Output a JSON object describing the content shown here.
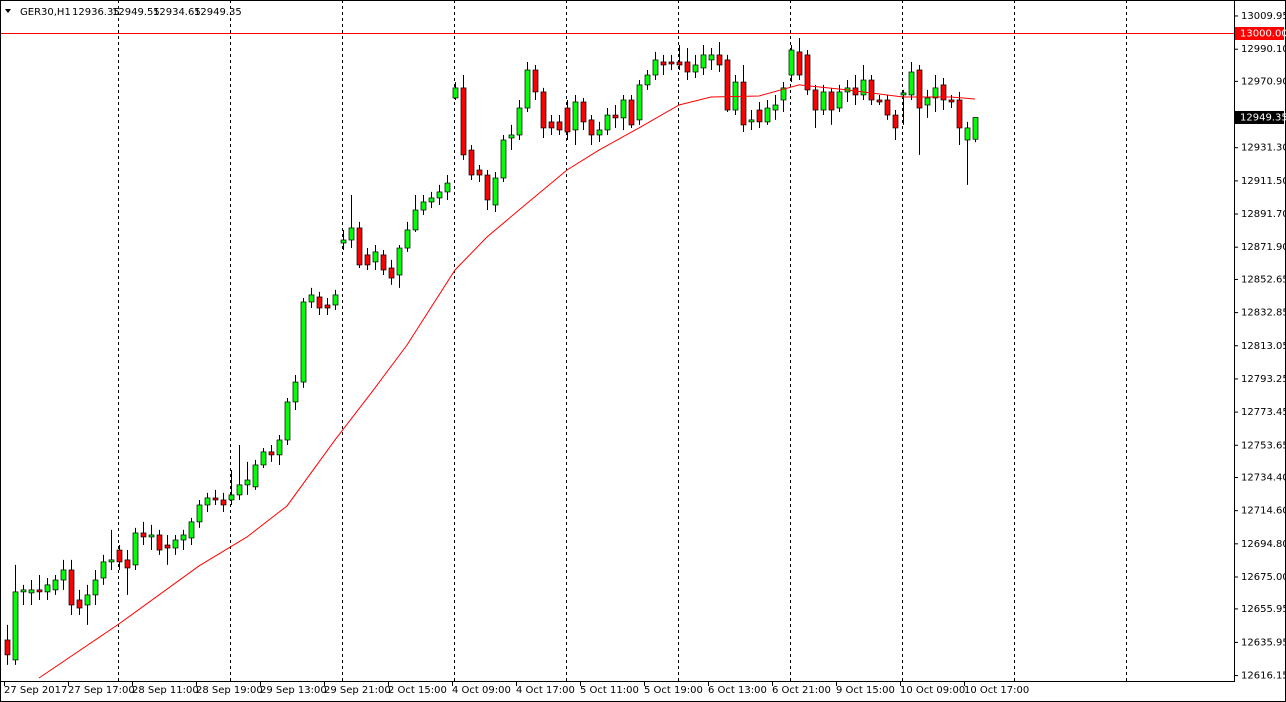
{
  "chart_data": {
    "type": "candlestick",
    "symbol": "GER30,H1",
    "header_ohlc": [
      12936.35,
      12949.55,
      12934.65,
      12949.35
    ],
    "up_color": "#00ff00",
    "down_color": "#ff0000",
    "wick_color": "#000000",
    "grid": true,
    "ylim": [
      12613.5,
      13016.5
    ],
    "yticks": [
      13009.95,
      {
        "value": 12990.1,
        "label": "12990.10"
      },
      {
        "value": 12970.9,
        "label": "12970.90"
      },
      {
        "value": 12931.3,
        "label": "12931.30"
      },
      {
        "value": 12911.5,
        "label": "12911.50"
      },
      {
        "value": 12891.7,
        "label": "12891.70"
      },
      {
        "value": 12871.9,
        "label": "12871.90"
      },
      12852.65,
      12832.85,
      12813.05,
      12793.25,
      12773.45,
      12753.65,
      {
        "value": 12734.4,
        "label": "12734.40"
      },
      {
        "value": 12714.6,
        "label": "12714.60"
      },
      {
        "value": 12694.8,
        "label": "12694.80"
      },
      {
        "value": 12675,
        "label": "12675.00"
      },
      12655.95,
      12635.95,
      12616.15
    ],
    "hline": {
      "value": 13000,
      "label": "13000.00",
      "color": "#ff0000"
    },
    "price_label": 12949.35,
    "categories": [
      "27 Sep 2017",
      null,
      null,
      null,
      null,
      null,
      null,
      null,
      "27 Sep 17:00",
      null,
      null,
      null,
      null,
      null,
      null,
      null,
      "28 Sep 11:00",
      null,
      null,
      null,
      null,
      null,
      null,
      null,
      "28 Sep 19:00",
      null,
      null,
      null,
      null,
      null,
      null,
      null,
      "29 Sep 13:00",
      null,
      null,
      null,
      null,
      null,
      null,
      null,
      "29 Sep 21:00",
      null,
      null,
      null,
      null,
      null,
      null,
      null,
      "2 Oct 15:00",
      null,
      null,
      null,
      null,
      null,
      null,
      null,
      "4 Oct 09:00",
      null,
      null,
      null,
      null,
      null,
      null,
      null,
      "4 Oct 17:00",
      null,
      null,
      null,
      null,
      null,
      null,
      null,
      "5 Oct 11:00",
      null,
      null,
      null,
      null,
      null,
      null,
      null,
      "5 Oct 19:00",
      null,
      null,
      null,
      null,
      null,
      null,
      null,
      "6 Oct 13:00",
      null,
      null,
      null,
      null,
      null,
      null,
      null,
      "6 Oct 21:00",
      null,
      null,
      null,
      null,
      null,
      null,
      null,
      "9 Oct 15:00",
      null,
      null,
      null,
      null,
      null,
      null,
      null,
      "10 Oct 09:00",
      null,
      null,
      null,
      null,
      null,
      null,
      null,
      "10 Oct 17:00",
      null
    ],
    "ohlc": [
      [
        12637.4,
        12646.4,
        12622.5,
        12628.5
      ],
      [
        12625.5,
        12682.2,
        12622.5,
        12666.1
      ],
      [
        12666.1,
        12670.3,
        12658.3,
        12667.3
      ],
      [
        12665.5,
        12673.2,
        12658.3,
        12667.3
      ],
      [
        12667.3,
        12676.2,
        12661.3,
        12666.1
      ],
      [
        12666.1,
        12674.4,
        12661.3,
        12670.3
      ],
      [
        12667.3,
        12676.2,
        12664.3,
        12673.2
      ],
      [
        12673.2,
        12685.2,
        12667.3,
        12679.2
      ],
      [
        12679.2,
        12685.2,
        12652.3,
        12658.3
      ],
      [
        12661.3,
        12667.3,
        12652.3,
        12656.5
      ],
      [
        12658.3,
        12670.3,
        12646.4,
        12664.3
      ],
      [
        12664.3,
        12679.2,
        12658.3,
        12673.2
      ],
      [
        12674.4,
        12688.2,
        12670.3,
        12684.0
      ],
      [
        12684.0,
        12703.1,
        12679.2,
        12685.2
      ],
      [
        12691.1,
        12694.1,
        12679.2,
        12684.0
      ],
      [
        12685.2,
        12691.1,
        12664.3,
        12680.4
      ],
      [
        12682.2,
        12704.3,
        12679.2,
        12701.3
      ],
      [
        12701.3,
        12707.9,
        12694.1,
        12698.9
      ],
      [
        12698.9,
        12706.1,
        12691.1,
        12700.1
      ],
      [
        12700.1,
        12703.1,
        12688.2,
        12691.1
      ],
      [
        12694.1,
        12700.1,
        12682.2,
        12692.3
      ],
      [
        12692.3,
        12700.1,
        12688.2,
        12697.1
      ],
      [
        12697.1,
        12703.1,
        12691.1,
        12700.1
      ],
      [
        12698.3,
        12710.3,
        12694.1,
        12707.9
      ],
      [
        12707.9,
        12721.0,
        12704.3,
        12718.0
      ],
      [
        12718.0,
        12725.2,
        12713.8,
        12722.2
      ],
      [
        12722.2,
        12727.0,
        12718.0,
        12721.0
      ],
      [
        12721.0,
        12725.2,
        12713.8,
        12718.0
      ],
      [
        12721.0,
        12738.9,
        12718.0,
        12724.0
      ],
      [
        12724.0,
        12753.8,
        12721.0,
        12730.0
      ],
      [
        12730.0,
        12743.7,
        12724.0,
        12732.9
      ],
      [
        12728.8,
        12744.9,
        12727.0,
        12741.9
      ],
      [
        12741.9,
        12752.0,
        12740.1,
        12749.7
      ],
      [
        12749.7,
        12753.8,
        12743.7,
        12747.9
      ],
      [
        12747.9,
        12759.8,
        12741.9,
        12756.8
      ],
      [
        12756.8,
        12781.9,
        12753.8,
        12779.5
      ],
      [
        12779.5,
        12795.6,
        12774.7,
        12791.4
      ],
      [
        12791.4,
        12841.6,
        12787.9,
        12839.2
      ],
      [
        12839.2,
        12847.6,
        12835.6,
        12843.4
      ],
      [
        12842.2,
        12845.2,
        12831.4,
        12835.6
      ],
      [
        12837.4,
        12841.6,
        12831.4,
        12835.6
      ],
      [
        12837.4,
        12846.4,
        12834.4,
        12843.4
      ],
      [
        12874.4,
        12882.2,
        12870.2,
        12876.2
      ],
      [
        12876.2,
        12903.1,
        12871.4,
        12883.4
      ],
      [
        12883.4,
        12887.0,
        12859.5,
        12861.3
      ],
      [
        12867.3,
        12871.4,
        12858.3,
        12861.3
      ],
      [
        12863.1,
        12873.2,
        12858.3,
        12869.1
      ],
      [
        12867.3,
        12870.2,
        12855.3,
        12858.3
      ],
      [
        12859.5,
        12864.3,
        12849.4,
        12853.5
      ],
      [
        12855.3,
        12873.2,
        12847.6,
        12871.4
      ],
      [
        12871.4,
        12887.0,
        12869.1,
        12882.2
      ],
      [
        12882.2,
        12903.1,
        12881.0,
        12894.1
      ],
      [
        12894.1,
        12903.1,
        12891.1,
        12898.9
      ],
      [
        12898.9,
        12904.9,
        12895.3,
        12901.3
      ],
      [
        12901.3,
        12909.1,
        12897.1,
        12904.9
      ],
      [
        12904.9,
        12915.0,
        12900.1,
        12910.2
      ],
      [
        12961.0,
        12970.5,
        12959.8,
        12967.0
      ],
      [
        12967.0,
        12974.7,
        12924.0,
        12927.0
      ],
      [
        12929.9,
        12932.9,
        12912.0,
        12915.0
      ],
      [
        12918.0,
        12921.0,
        12910.8,
        12915.0
      ],
      [
        12915.0,
        12918.0,
        12894.1,
        12900.1
      ],
      [
        12897.1,
        12916.8,
        12892.9,
        12913.2
      ],
      [
        12913.2,
        12938.9,
        12910.8,
        12935.9
      ],
      [
        12937.1,
        12944.9,
        12929.9,
        12938.9
      ],
      [
        12938.9,
        12959.8,
        12935.9,
        12955.0
      ],
      [
        12955.0,
        12982.5,
        12952.6,
        12977.7
      ],
      [
        12977.7,
        12980.7,
        12959.8,
        12964.6
      ],
      [
        12964.6,
        12967.0,
        12937.1,
        12943.1
      ],
      [
        12946.7,
        12950.8,
        12938.9,
        12943.1
      ],
      [
        12946.7,
        12950.8,
        12938.9,
        12941.9
      ],
      [
        12955.0,
        12959.8,
        12935.9,
        12940.7
      ],
      [
        12941.9,
        12962.8,
        12932.9,
        12958.6
      ],
      [
        12958.6,
        12961.0,
        12941.9,
        12946.7
      ],
      [
        12947.9,
        12950.8,
        12932.9,
        12938.9
      ],
      [
        12938.9,
        12946.7,
        12934.7,
        12941.9
      ],
      [
        12941.9,
        12955.0,
        12938.9,
        12950.8
      ],
      [
        12950.8,
        12956.8,
        12943.1,
        12949.1
      ],
      [
        12949.1,
        12962.8,
        12941.9,
        12959.8
      ],
      [
        12959.8,
        12962.8,
        12943.1,
        12944.9
      ],
      [
        12947.9,
        12971.7,
        12944.9,
        12968.8
      ],
      [
        12968.8,
        12977.7,
        12965.8,
        12974.7
      ],
      [
        12974.7,
        12988.5,
        12971.7,
        12983.7
      ],
      [
        12982.5,
        12986.7,
        12974.7,
        12980.7
      ],
      [
        12982.5,
        12986.7,
        12977.7,
        12981.3
      ],
      [
        12982.5,
        12992.6,
        12977.7,
        12980.7
      ],
      [
        12982.5,
        12990.8,
        12971.7,
        12976.5
      ],
      [
        12976.5,
        12986.7,
        12972.9,
        12980.7
      ],
      [
        12978.9,
        12992.6,
        12974.7,
        12986.7
      ],
      [
        12983.7,
        12990.8,
        12977.7,
        12986.7
      ],
      [
        12986.7,
        12994.4,
        12976.5,
        12980.7
      ],
      [
        12983.7,
        12986.7,
        12952.6,
        12953.8
      ],
      [
        12953.8,
        12974.7,
        12950.8,
        12970.5
      ],
      [
        12970.5,
        12980.7,
        12940.7,
        12944.9
      ],
      [
        12946.7,
        12953.8,
        12941.9,
        12947.9
      ],
      [
        12953.8,
        12958.6,
        12943.1,
        12946.7
      ],
      [
        12946.7,
        12959.8,
        12944.9,
        12955.0
      ],
      [
        12953.8,
        12962.8,
        12947.9,
        12956.8
      ],
      [
        12959.8,
        12970.5,
        12952.6,
        12967.0
      ],
      [
        12974.7,
        12992.6,
        12970.5,
        12989.6
      ],
      [
        12988.5,
        12996.8,
        12971.7,
        12974.7
      ],
      [
        12986.7,
        12989.6,
        12962.8,
        12965.8
      ],
      [
        12965.8,
        12968.8,
        12943.1,
        12953.8
      ],
      [
        12953.8,
        12968.8,
        12950.8,
        12964.6
      ],
      [
        12964.6,
        12967.0,
        12944.9,
        12953.8
      ],
      [
        12955.0,
        12968.8,
        12952.6,
        12964.6
      ],
      [
        12964.6,
        12971.7,
        12958.6,
        12967.0
      ],
      [
        12967.0,
        12974.7,
        12956.8,
        12962.8
      ],
      [
        12962.8,
        12980.7,
        12959.8,
        12971.7
      ],
      [
        12971.7,
        12974.7,
        12956.8,
        12959.8
      ],
      [
        12959.8,
        12962.8,
        12956.8,
        12958.6
      ],
      [
        12959.8,
        12962.8,
        12947.9,
        12950.8
      ],
      [
        12950.8,
        12953.8,
        12935.9,
        12943.1
      ],
      [
        12962.8,
        12965.8,
        12944.9,
        12964.0
      ],
      [
        12962.8,
        12982.5,
        12959.8,
        12976.5
      ],
      [
        12977.7,
        12980.7,
        12927.0,
        12955.0
      ],
      [
        12956.8,
        12965.8,
        12949.1,
        12961.0
      ],
      [
        12961.0,
        12974.7,
        12952.6,
        12967.0
      ],
      [
        12968.8,
        12972.9,
        12953.8,
        12959.8
      ],
      [
        12959.8,
        12962.8,
        12955.0,
        12958.6
      ],
      [
        12959.8,
        12964.6,
        12932.9,
        12943.1
      ],
      [
        12935.9,
        12946.7,
        12909.1,
        12943.1
      ],
      [
        12936.35,
        12949.55,
        12934.65,
        12949.35
      ]
    ],
    "ma": {
      "color": "#ff0000",
      "x": [
        4,
        14,
        24,
        30,
        35,
        41,
        46,
        50,
        56,
        60,
        64,
        70,
        74,
        79,
        84,
        88,
        94,
        99,
        105,
        112,
        118,
        121
      ],
      "values": [
        12614.7,
        12647.0,
        12681.6,
        12698.9,
        12717.4,
        12756.8,
        12787.9,
        12813.5,
        12858.3,
        12878.0,
        12894.1,
        12918.0,
        12929.9,
        12943.1,
        12956.8,
        12961.6,
        12962.2,
        12968.8,
        12965.8,
        12961.6,
        12961.6,
        12960.4
      ]
    }
  }
}
